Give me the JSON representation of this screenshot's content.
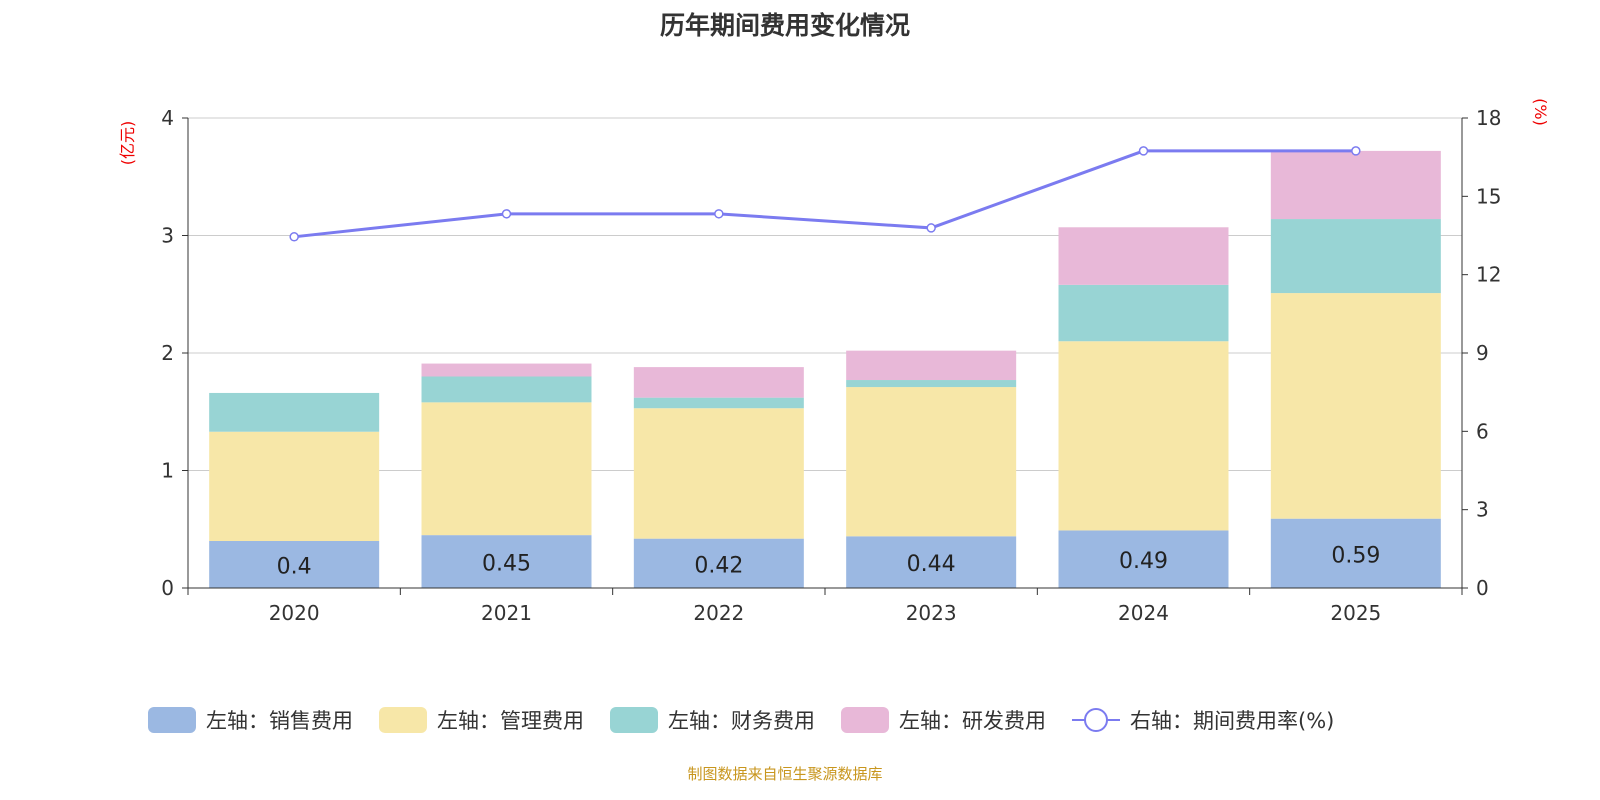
{
  "title": "历年期间费用变化情况",
  "source": "制图数据来自恒生聚源数据库",
  "chart_data": {
    "type": "bar",
    "stacked": true,
    "categories": [
      "2020",
      "2021",
      "2022",
      "2023",
      "2024",
      "2025"
    ],
    "left_axis": {
      "label": "(亿元)",
      "ylim": [
        0,
        4
      ],
      "ticks": [
        "0",
        "1",
        "2",
        "3",
        "4"
      ]
    },
    "right_axis": {
      "label": "(%)",
      "ylim": [
        0,
        18
      ],
      "ticks": [
        "0",
        "3",
        "6",
        "9",
        "12",
        "15",
        "18"
      ]
    },
    "grid": true,
    "legend_position": "bottom",
    "series": [
      {
        "name": "左轴：销售费用",
        "axis": "left",
        "color": "#9bb8e2",
        "values": [
          0.4,
          0.45,
          0.42,
          0.44,
          0.49,
          0.59
        ],
        "labels": [
          "0.4",
          "0.45",
          "0.42",
          "0.44",
          "0.49",
          "0.59"
        ]
      },
      {
        "name": "左轴：管理费用",
        "axis": "left",
        "color": "#f7e7a8",
        "values": [
          0.93,
          1.13,
          1.11,
          1.27,
          1.61,
          1.92
        ]
      },
      {
        "name": "左轴：财务费用",
        "axis": "left",
        "color": "#98d4d4",
        "values": [
          0.33,
          0.22,
          0.09,
          0.06,
          0.48,
          0.63
        ]
      },
      {
        "name": "左轴：研发费用",
        "axis": "left",
        "color": "#e8b8d8",
        "values": [
          0.0,
          0.11,
          0.26,
          0.25,
          0.49,
          0.58
        ]
      },
      {
        "name": "右轴：期间费用率(%)",
        "axis": "right",
        "type": "line",
        "color": "#7b7bf0",
        "values": [
          13.45,
          14.33,
          14.33,
          13.79,
          16.74,
          16.74
        ]
      }
    ]
  }
}
